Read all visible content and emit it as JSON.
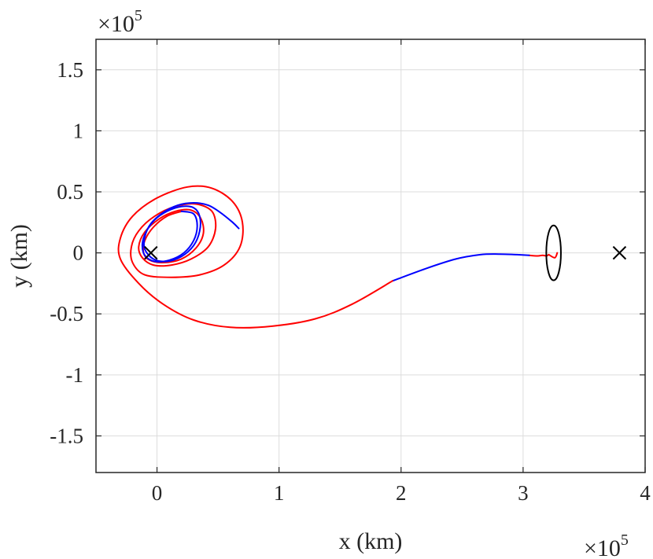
{
  "chart_data": {
    "type": "line",
    "xlabel": "x (km)",
    "ylabel": "y (km)",
    "x_exponent_label": "×10",
    "x_exponent_power": "5",
    "y_exponent_label": "×10",
    "y_exponent_power": "5",
    "xlim": [
      -0.5,
      4.0
    ],
    "ylim": [
      -1.8,
      1.75
    ],
    "scale": 100000,
    "xticks": [
      0,
      1,
      2,
      3,
      4
    ],
    "xtick_labels": [
      "0",
      "1",
      "2",
      "3",
      "4"
    ],
    "yticks": [
      -1.5,
      -1,
      -0.5,
      0,
      0.5,
      1,
      1.5
    ],
    "ytick_labels": [
      "-1.5",
      "-1",
      "-0.5",
      "0",
      "0.5",
      "1",
      "1.5"
    ],
    "grid": true,
    "colors": {
      "red": "#ff0000",
      "blue": "#0000ff",
      "black": "#000000",
      "grid": "#dcdcdc",
      "axis": "#262626"
    },
    "markers": [
      {
        "name": "earth-marker",
        "x": -0.05,
        "y": 0.0,
        "symbol": "x",
        "color": "#000000"
      },
      {
        "name": "moon-marker",
        "x": 3.79,
        "y": 0.0,
        "symbol": "x",
        "color": "#000000"
      }
    ],
    "series": [
      {
        "color": "#ff0000",
        "points": [
          [
            3.05,
            -0.02
          ],
          [
            3.12,
            -0.025
          ],
          [
            3.16,
            -0.02
          ],
          [
            3.19,
            -0.025
          ],
          [
            3.21,
            -0.015
          ]
        ]
      },
      {
        "color": "#0000ff",
        "points": [
          [
            1.93,
            -0.23
          ],
          [
            2.2,
            -0.13
          ],
          [
            2.45,
            -0.05
          ],
          [
            2.65,
            -0.015
          ],
          [
            2.8,
            -0.01
          ],
          [
            2.95,
            -0.015
          ],
          [
            3.05,
            -0.02
          ]
        ]
      },
      {
        "color": "#ff0000",
        "points": [
          [
            1.93,
            -0.23
          ],
          [
            1.6,
            -0.42
          ],
          [
            1.3,
            -0.54
          ],
          [
            0.95,
            -0.6
          ],
          [
            0.6,
            -0.61
          ],
          [
            0.3,
            -0.55
          ],
          [
            0.05,
            -0.42
          ],
          [
            -0.15,
            -0.25
          ],
          [
            -0.3,
            -0.05
          ],
          [
            -0.3,
            0.12
          ],
          [
            -0.2,
            0.3
          ],
          [
            0.0,
            0.45
          ],
          [
            0.25,
            0.54
          ],
          [
            0.45,
            0.53
          ],
          [
            0.62,
            0.42
          ],
          [
            0.7,
            0.25
          ],
          [
            0.68,
            0.05
          ],
          [
            0.55,
            -0.1
          ],
          [
            0.35,
            -0.18
          ],
          [
            0.12,
            -0.2
          ],
          [
            -0.1,
            -0.18
          ],
          [
            -0.2,
            -0.08
          ],
          [
            -0.21,
            0.05
          ],
          [
            -0.15,
            0.18
          ],
          [
            -0.02,
            0.3
          ],
          [
            0.15,
            0.38
          ],
          [
            0.32,
            0.4
          ],
          [
            0.45,
            0.34
          ],
          [
            0.48,
            0.2
          ],
          [
            0.42,
            0.05
          ],
          [
            0.28,
            -0.05
          ],
          [
            0.12,
            -0.1
          ],
          [
            -0.03,
            -0.1
          ],
          [
            -0.12,
            -0.04
          ],
          [
            -0.15,
            0.05
          ],
          [
            -0.1,
            0.17
          ],
          [
            0.02,
            0.28
          ],
          [
            0.15,
            0.34
          ],
          [
            0.28,
            0.35
          ],
          [
            0.36,
            0.28
          ],
          [
            0.38,
            0.16
          ],
          [
            0.32,
            0.04
          ],
          [
            0.2,
            -0.05
          ],
          [
            0.05,
            -0.08
          ],
          [
            -0.06,
            -0.06
          ],
          [
            -0.11,
            0.0
          ],
          [
            -0.1,
            0.1
          ],
          [
            -0.03,
            0.21
          ],
          [
            0.08,
            0.3
          ],
          [
            0.2,
            0.34
          ]
        ]
      },
      {
        "color": "#0000ff",
        "points": [
          [
            0.2,
            0.34
          ],
          [
            0.3,
            0.32
          ],
          [
            0.33,
            0.22
          ],
          [
            0.3,
            0.1
          ],
          [
            0.22,
            0.0
          ],
          [
            0.1,
            -0.06
          ],
          [
            -0.02,
            -0.07
          ],
          [
            -0.1,
            -0.02
          ],
          [
            -0.12,
            0.07
          ],
          [
            -0.09,
            0.17
          ],
          [
            -0.02,
            0.27
          ],
          [
            0.08,
            0.34
          ],
          [
            0.2,
            0.38
          ],
          [
            0.3,
            0.37
          ],
          [
            0.35,
            0.3
          ],
          [
            0.35,
            0.18
          ],
          [
            0.3,
            0.06
          ],
          [
            0.2,
            -0.03
          ],
          [
            0.08,
            -0.07
          ],
          [
            -0.03,
            -0.05
          ],
          [
            -0.1,
            0.03
          ],
          [
            -0.1,
            0.13
          ],
          [
            -0.05,
            0.24
          ],
          [
            0.05,
            0.33
          ],
          [
            0.17,
            0.39
          ],
          [
            0.3,
            0.41
          ],
          [
            0.42,
            0.39
          ],
          [
            0.52,
            0.33
          ],
          [
            0.62,
            0.25
          ],
          [
            0.67,
            0.2
          ]
        ]
      },
      {
        "color": "#ff0000",
        "points": [
          [
            3.21,
            -0.015
          ],
          [
            3.26,
            -0.04
          ],
          [
            3.28,
            0.0
          ]
        ]
      }
    ],
    "ellipse": {
      "color": "#000000",
      "center": [
        3.25,
        0.0
      ],
      "rx": 0.06,
      "ry": 0.225
    }
  }
}
